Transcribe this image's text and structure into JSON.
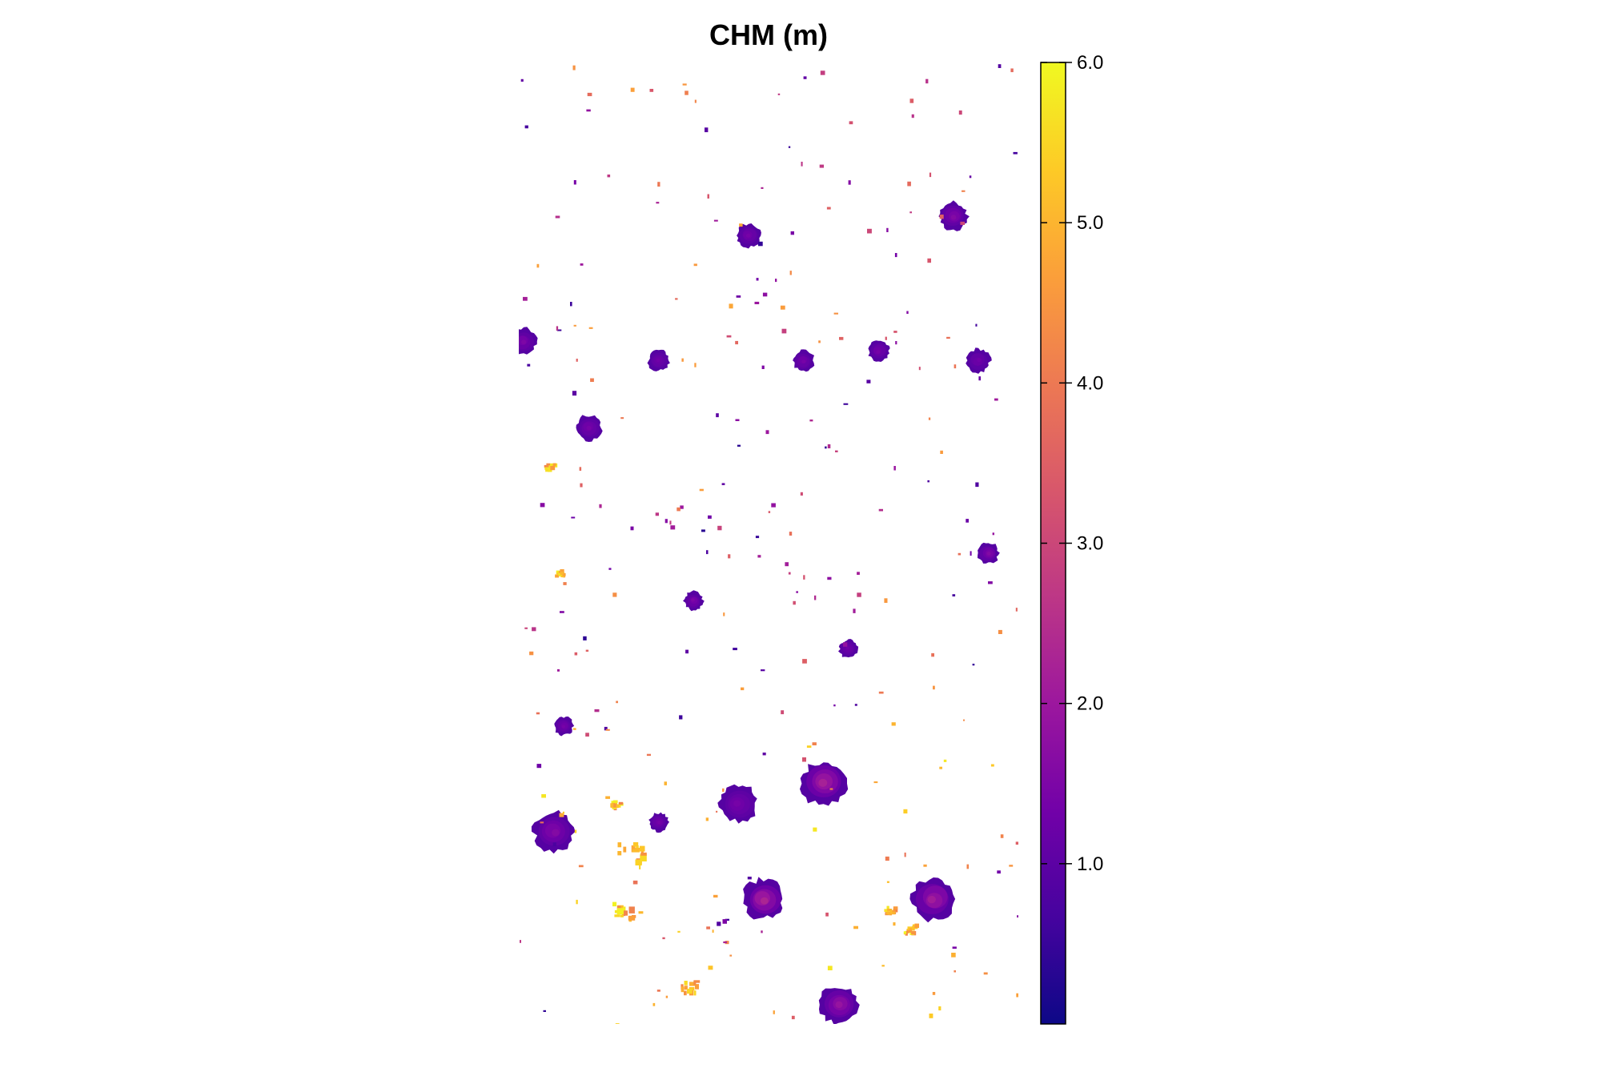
{
  "chart_data": {
    "type": "heatmap",
    "title": "CHM (m)",
    "colorbar": {
      "min": 0,
      "max": 6.0,
      "ticks": [
        1.0,
        2.0,
        3.0,
        4.0,
        5.0,
        6.0
      ],
      "tick_labels": [
        "1.0",
        "2.0",
        "3.0",
        "4.0",
        "5.0",
        "6.0"
      ],
      "colors": [
        "#0d0887",
        "#46039f",
        "#7201a8",
        "#9c179e",
        "#bd3786",
        "#d8576b",
        "#ed7953",
        "#fb9f3a",
        "#fdca26",
        "#f0f921"
      ]
    },
    "crowns": [
      {
        "x": 0.46,
        "y": 0.82,
        "size": 1.0,
        "h": 1.4
      },
      {
        "x": 0.87,
        "y": 0.84,
        "size": 1.2,
        "h": 1.6
      },
      {
        "x": 0.01,
        "y": 0.71,
        "size": 1.1,
        "h": 1.5
      },
      {
        "x": 0.28,
        "y": 0.69,
        "size": 0.9,
        "h": 1.3
      },
      {
        "x": 0.57,
        "y": 0.69,
        "size": 0.9,
        "h": 1.4
      },
      {
        "x": 0.72,
        "y": 0.7,
        "size": 0.9,
        "h": 1.4
      },
      {
        "x": 0.92,
        "y": 0.69,
        "size": 1.0,
        "h": 1.3
      },
      {
        "x": 0.14,
        "y": 0.62,
        "size": 1.1,
        "h": 1.4
      },
      {
        "x": 0.94,
        "y": 0.49,
        "size": 0.9,
        "h": 1.6
      },
      {
        "x": 0.35,
        "y": 0.44,
        "size": 0.8,
        "h": 1.5
      },
      {
        "x": 0.66,
        "y": 0.39,
        "size": 0.8,
        "h": 1.3
      },
      {
        "x": 0.09,
        "y": 0.31,
        "size": 0.8,
        "h": 1.4
      },
      {
        "x": 0.28,
        "y": 0.21,
        "size": 0.8,
        "h": 1.4
      },
      {
        "x": 0.61,
        "y": 0.25,
        "size": 1.9,
        "h": 2.2
      },
      {
        "x": 0.44,
        "y": 0.23,
        "size": 1.6,
        "h": 1.4
      },
      {
        "x": 0.07,
        "y": 0.2,
        "size": 1.7,
        "h": 1.6
      },
      {
        "x": 0.49,
        "y": 0.13,
        "size": 1.7,
        "h": 2.3
      },
      {
        "x": 0.83,
        "y": 0.13,
        "size": 1.8,
        "h": 2.1
      },
      {
        "x": 0.64,
        "y": 0.02,
        "size": 1.6,
        "h": 1.9
      }
    ]
  }
}
